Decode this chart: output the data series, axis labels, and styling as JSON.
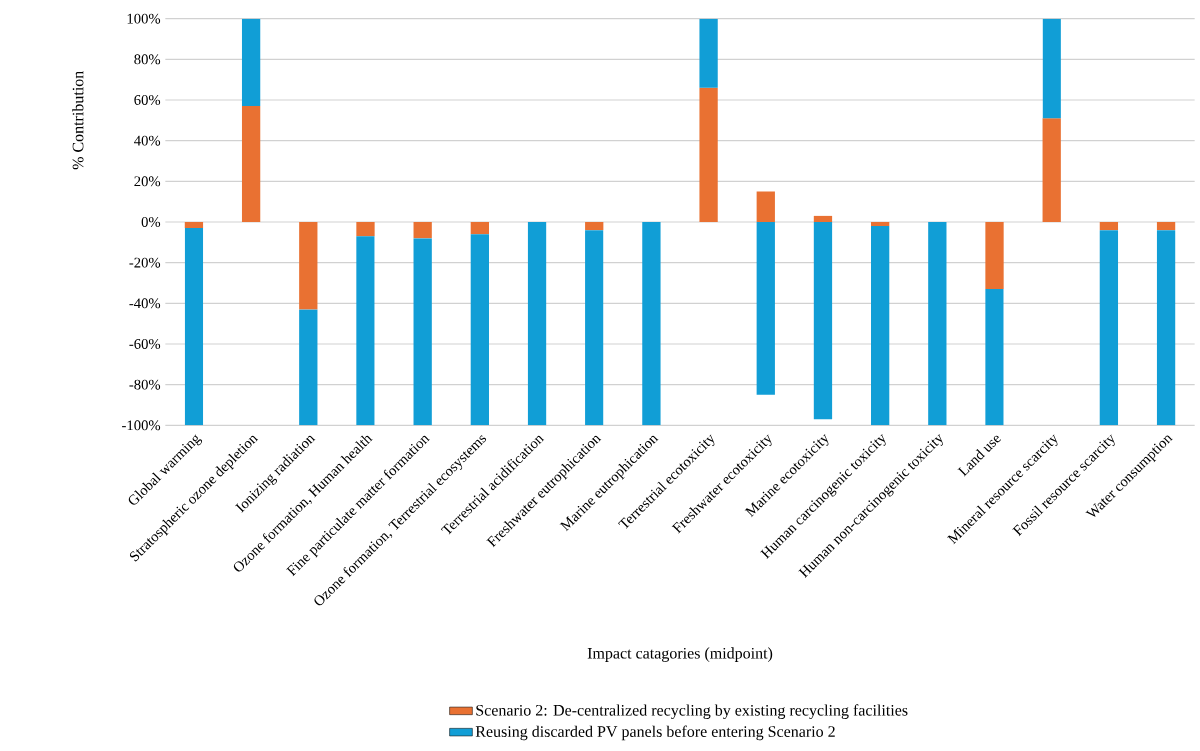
{
  "chart_data": {
    "type": "bar",
    "stacked": true,
    "xlabel": "Impact catagories (midpoint)",
    "ylabel": "% Contribution",
    "categories": [
      "Global warming",
      "Stratospheric ozone depletion",
      "Ionizing radiation",
      "Ozone formation, Human health",
      "Fine particulate matter formation",
      "Ozone formation, Terrestrial ecosystems",
      "Terrestrial acidification",
      "Freshwater eutrophication",
      "Marine eutrophication",
      "Terrestrial ecotoxicity",
      "Freshwater ecotoxicity",
      "Marine ecotoxicity",
      "Human carcinogenic toxicity",
      "Human non-carcinogenic toxicity",
      "Land use",
      "Mineral resource scarcity",
      "Fossil resource scarcity",
      "Water consumption"
    ],
    "series": [
      {
        "name": "Scenario 2: De-centralized recycling by existing recycling facilities",
        "color": "#e97132",
        "values": [
          -3,
          57,
          -43,
          -7,
          -8,
          -6,
          0,
          -4,
          0,
          66,
          15,
          3,
          -2,
          0,
          -33,
          51,
          -4,
          -4
        ]
      },
      {
        "name": "Reusing discarded PV panels before entering Scenario 2",
        "color": "#119ed6",
        "values": [
          -97,
          43,
          -57,
          -93,
          -92,
          -94,
          -100,
          -96,
          -100,
          34,
          -85,
          -97,
          -98,
          -100,
          -67,
          49,
          -96,
          -96
        ]
      }
    ],
    "ylim": [
      -100,
      100
    ],
    "yticks": [
      {
        "value": -100,
        "label": "-100%"
      },
      {
        "value": -80,
        "label": "-80%"
      },
      {
        "value": -60,
        "label": "-60%"
      },
      {
        "value": -40,
        "label": "-40%"
      },
      {
        "value": -20,
        "label": "-20%"
      },
      {
        "value": 0,
        "label": "0%"
      },
      {
        "value": 20,
        "label": "20%"
      },
      {
        "value": 40,
        "label": "40%"
      },
      {
        "value": 60,
        "label": "60%"
      },
      {
        "value": 80,
        "label": "80%"
      },
      {
        "value": 100,
        "label": "100%"
      }
    ],
    "grid": "y",
    "legend": "bottom"
  }
}
